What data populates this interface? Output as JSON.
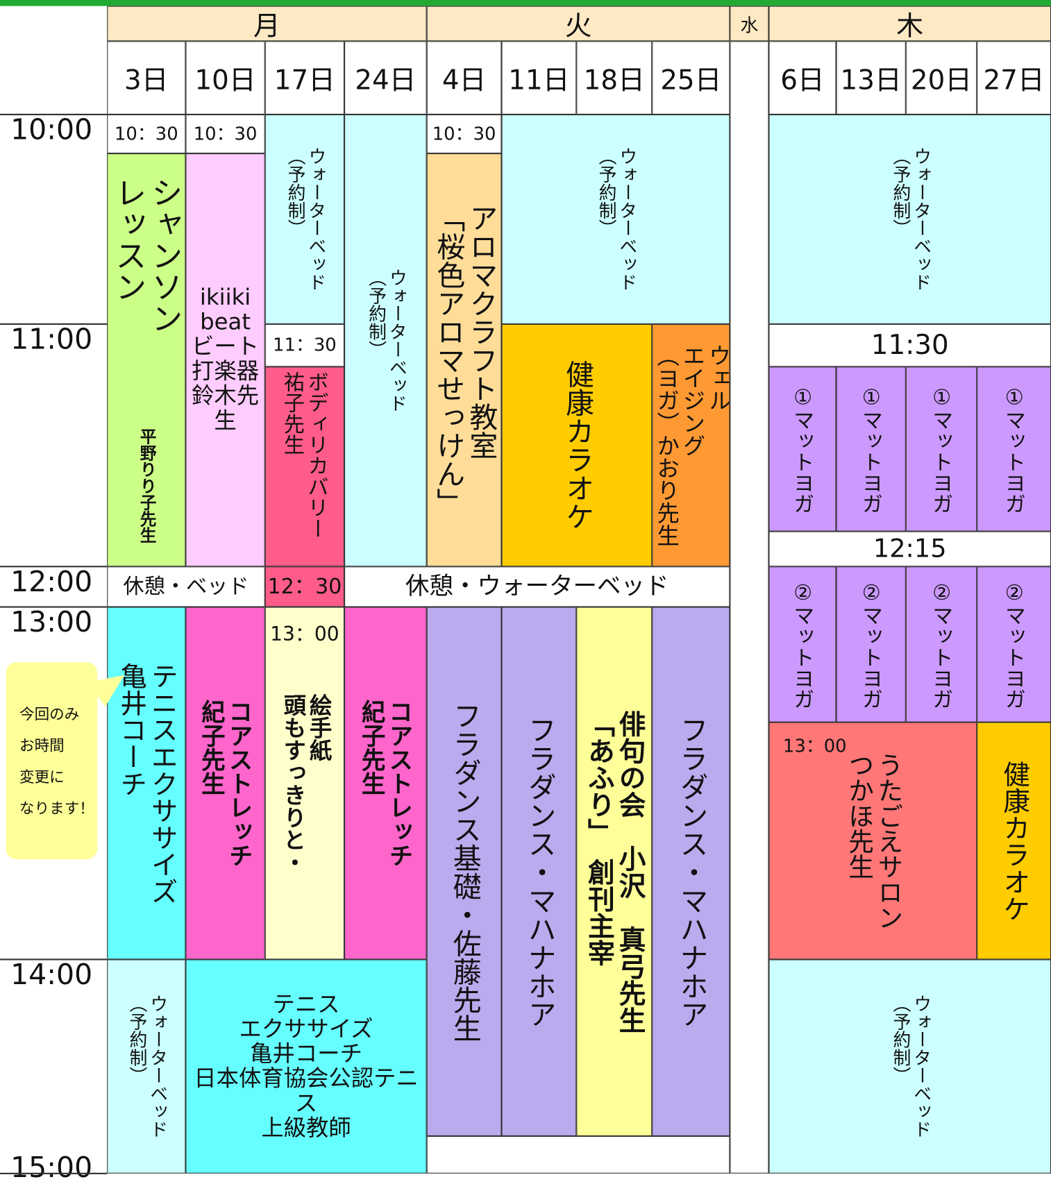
{
  "header": {
    "days": [
      {
        "label": "月",
        "dates": [
          "3日",
          "10日",
          "17日",
          "24日"
        ]
      },
      {
        "label": "火",
        "dates": [
          "4日",
          "11日",
          "18日",
          "25日"
        ]
      },
      {
        "label": "水",
        "dates": []
      },
      {
        "label": "木",
        "dates": [
          "6日",
          "13日",
          "20日",
          "27日"
        ]
      }
    ]
  },
  "times": [
    "10:00",
    "11:00",
    "12:00",
    "13:00",
    "14:00",
    "15:00"
  ],
  "cells": [
    {
      "text": [
        "10：30"
      ]
    },
    {
      "text": [
        "シャンソン",
        "レッスン"
      ]
    },
    {
      "text": [
        "平野りり子先生"
      ]
    },
    {
      "text": [
        "10：30"
      ]
    },
    {
      "text": [
        "ikiiki",
        "beat",
        "ビート",
        "打楽器",
        "鈴木先生"
      ]
    },
    {
      "text": [
        "ウォーターベッド",
        "（予約制）"
      ]
    },
    {
      "text": [
        "11：30"
      ]
    },
    {
      "text": [
        "ボディリカバリー",
        "祐子先生"
      ]
    },
    {
      "text": [
        "ウォーターベッド",
        "（予約制）"
      ]
    },
    {
      "text": [
        "10：30"
      ]
    },
    {
      "text": [
        "アロマクラフト教室",
        "「桜色アロマせっけん」"
      ]
    },
    {
      "text": [
        "ウォーターベッド",
        "（予約制）"
      ]
    },
    {
      "text": [
        "健康カラオケ"
      ]
    },
    {
      "text": [
        "ウェル",
        "エイジング",
        "（ヨガ）かおり先生"
      ]
    },
    {
      "text": [
        "休憩・ベッド"
      ]
    },
    {
      "text": [
        "12：30"
      ]
    },
    {
      "text": [
        "休憩・ウォーターベッド"
      ]
    },
    {
      "text": [
        "ウォーターベッド",
        "（予約制）"
      ]
    },
    {
      "text": [
        "11:30"
      ]
    },
    {
      "text": [
        "①マットヨガ"
      ]
    },
    {
      "text": [
        "①マットヨガ"
      ]
    },
    {
      "text": [
        "①マットヨガ"
      ]
    },
    {
      "text": [
        "①マットヨガ"
      ]
    },
    {
      "text": [
        "12:15"
      ]
    },
    {
      "text": [
        "②マットヨガ"
      ]
    },
    {
      "text": [
        "②マットヨガ"
      ]
    },
    {
      "text": [
        "②マットヨガ"
      ]
    },
    {
      "text": [
        "②マットヨガ"
      ]
    },
    {
      "text": [
        "うたごえサロン",
        "つかほ先生"
      ]
    },
    {
      "text": [
        "13：00"
      ]
    },
    {
      "text": [
        "健康カラオケ"
      ]
    },
    {
      "text": [
        "ウォーターベッド",
        "（予約制）"
      ]
    },
    {
      "text": [
        "テニスエクササイズ",
        "亀井コーチ"
      ]
    },
    {
      "text": [
        "コアストレッチ",
        "紀子先生"
      ]
    },
    {
      "text": [
        "絵手紙",
        "頭もすっきりと・"
      ]
    },
    {
      "text": [
        "13：00"
      ]
    },
    {
      "text": [
        "コアストレッチ",
        "紀子先生"
      ]
    },
    {
      "text": [
        "フラダンス基礎・佐藤先生"
      ]
    },
    {
      "text": [
        "フラダンス・マハナホア"
      ]
    },
    {
      "text": [
        "俳句の会　小沢　真弓先生",
        "「あふり」　創刊主宰"
      ]
    },
    {
      "text": [
        "フラダンス・マハナホア"
      ]
    },
    {
      "text": [
        "ウォーターベッド",
        "（予約制）"
      ]
    },
    {
      "text": [
        "テニス",
        "エクササイズ",
        "亀井コーチ",
        "日本体育協会公認テニス",
        "上級教師"
      ]
    }
  ],
  "note": {
    "lines": [
      "今回のみ",
      "お時間",
      "変更に",
      "なります！"
    ]
  }
}
